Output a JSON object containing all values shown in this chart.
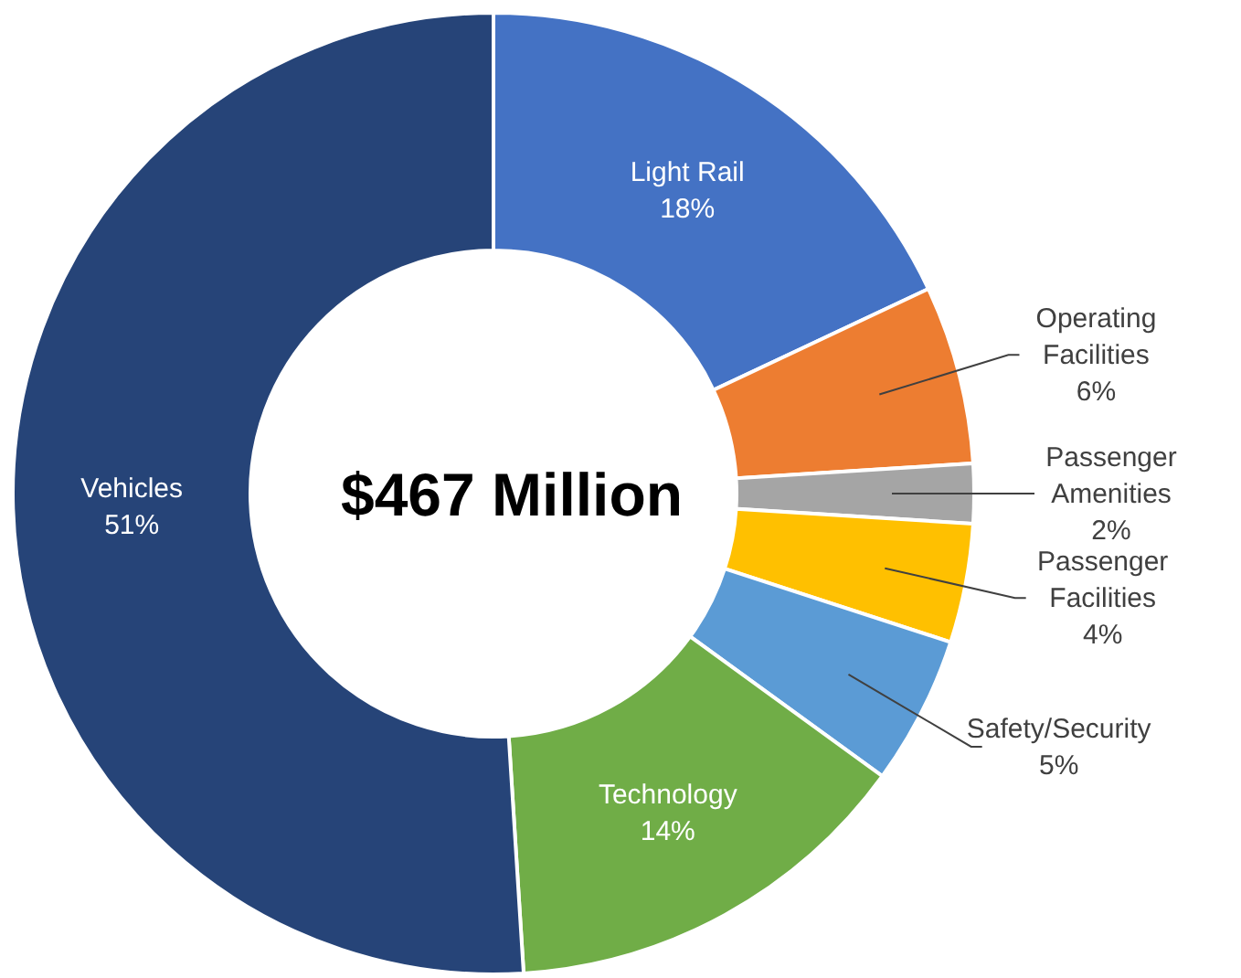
{
  "chart_data": {
    "type": "donut",
    "categories": [
      "Light Rail",
      "Operating Facilities",
      "Passenger Amenities",
      "Passenger Facilities",
      "Safety/Security",
      "Technology",
      "Vehicles"
    ],
    "values": [
      18,
      6,
      2,
      4,
      5,
      14,
      51
    ],
    "colors": [
      "#4472c4",
      "#ed7d31",
      "#a5a5a5",
      "#ffc000",
      "#5b9bd5",
      "#70ad47",
      "#264478"
    ],
    "value_labels": [
      "18%",
      "6%",
      "2%",
      "4%",
      "5%",
      "14%",
      "51%"
    ],
    "annotations": [
      "$467 Million"
    ]
  }
}
